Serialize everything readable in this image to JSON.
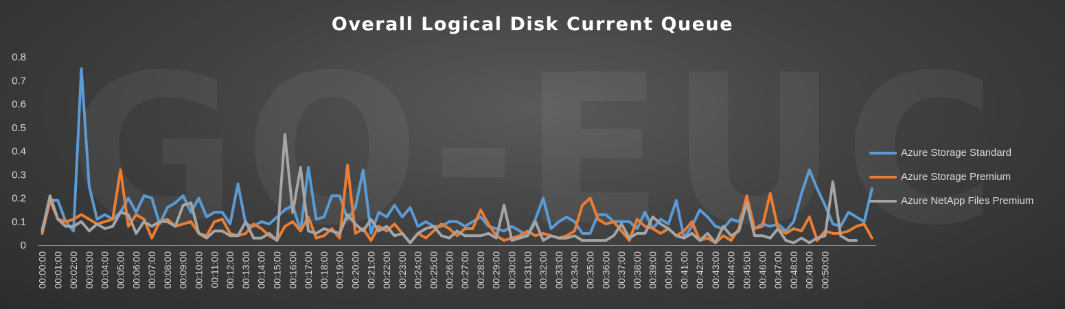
{
  "watermark": "GO-EUC",
  "chart_data": {
    "type": "line",
    "title": "Overall Logical Disk Current Queue",
    "xlabel": "",
    "ylabel": "",
    "ylim": [
      0,
      0.8
    ],
    "yticks": [
      "0",
      "0.1",
      "0.2",
      "0.3",
      "0.4",
      "0.5",
      "0.6",
      "0.7",
      "0.8"
    ],
    "x_tick_labels": [
      "00:00:00",
      "00:01:00",
      "00:02:00",
      "00:03:00",
      "00:04:00",
      "00:05:00",
      "00:06:00",
      "00:07:00",
      "00:08:00",
      "00:09:00",
      "00:10:00",
      "00:11:00",
      "00:12:00",
      "00:13:00",
      "00:14:00",
      "00:15:00",
      "00:16:00",
      "00:17:00",
      "00:18:00",
      "00:19:00",
      "00:20:00",
      "00:21:00",
      "00:22:00",
      "00:23:00",
      "00:24:00",
      "00:25:00",
      "00:26:00",
      "00:27:00",
      "00:28:00",
      "00:29:00",
      "00:30:00",
      "00:31:00",
      "00:32:00",
      "00:33:00",
      "00:34:00",
      "00:35:00",
      "00:36:00",
      "00:37:00",
      "00:38:00",
      "00:39:00",
      "00:40:00",
      "00:41:00",
      "00:42:00",
      "00:43:00",
      "00:44:00",
      "00:45:00",
      "00:46:00",
      "00:47:00",
      "00:48:00",
      "00:49:00",
      "00:50:00"
    ],
    "points_per_minute": 2,
    "grid": false,
    "legend_position": "right",
    "series": [
      {
        "name": "Azure Storage Standard",
        "color": "#5b9bd5",
        "values": [
          0.07,
          0.19,
          0.19,
          0.1,
          0.06,
          0.75,
          0.25,
          0.11,
          0.13,
          0.11,
          0.14,
          0.2,
          0.14,
          0.21,
          0.2,
          0.09,
          0.16,
          0.18,
          0.21,
          0.14,
          0.2,
          0.12,
          0.14,
          0.14,
          0.09,
          0.26,
          0.09,
          0.08,
          0.1,
          0.09,
          0.12,
          0.15,
          0.17,
          0.06,
          0.33,
          0.11,
          0.12,
          0.21,
          0.21,
          0.11,
          0.16,
          0.32,
          0.05,
          0.14,
          0.12,
          0.17,
          0.12,
          0.16,
          0.08,
          0.1,
          0.08,
          0.08,
          0.1,
          0.1,
          0.08,
          0.1,
          0.12,
          0.08,
          0.07,
          0.06,
          0.08,
          0.06,
          0.04,
          0.11,
          0.2,
          0.07,
          0.1,
          0.12,
          0.1,
          0.05,
          0.05,
          0.13,
          0.13,
          0.1,
          0.1,
          0.1,
          0.07,
          0.14,
          0.07,
          0.11,
          0.09,
          0.19,
          0.03,
          0.08,
          0.15,
          0.12,
          0.08,
          0.07,
          0.11,
          0.1,
          0.18,
          0.07,
          0.09,
          0.08,
          0.09,
          0.06,
          0.1,
          0.22,
          0.32,
          0.24,
          0.17,
          0.09,
          0.08,
          0.14,
          0.12,
          0.1,
          0.24
        ]
      },
      {
        "name": "Azure Storage Premium",
        "color": "#ed7d31",
        "values": [
          0.05,
          0.19,
          0.11,
          0.1,
          0.11,
          0.13,
          0.11,
          0.09,
          0.1,
          0.11,
          0.32,
          0.08,
          0.13,
          0.11,
          0.03,
          0.1,
          0.11,
          0.08,
          0.09,
          0.1,
          0.05,
          0.04,
          0.1,
          0.11,
          0.05,
          0.04,
          0.05,
          0.09,
          0.07,
          0.04,
          0.02,
          0.08,
          0.1,
          0.06,
          0.12,
          0.03,
          0.04,
          0.07,
          0.03,
          0.34,
          0.05,
          0.07,
          0.02,
          0.08,
          0.06,
          0.09,
          0.05,
          0.01,
          0.05,
          0.03,
          0.06,
          0.09,
          0.07,
          0.04,
          0.07,
          0.07,
          0.15,
          0.09,
          0.04,
          0.02,
          0.03,
          0.04,
          0.06,
          0.04,
          0.05,
          0.04,
          0.03,
          0.04,
          0.06,
          0.17,
          0.2,
          0.11,
          0.09,
          0.1,
          0.06,
          0.02,
          0.11,
          0.08,
          0.07,
          0.05,
          0.07,
          0.04,
          0.06,
          0.1,
          0.02,
          0.03,
          0.01,
          0.04,
          0.02,
          0.07,
          0.21,
          0.07,
          0.08,
          0.22,
          0.07,
          0.05,
          0.07,
          0.06,
          0.12,
          0.02,
          0.06,
          0.05,
          0.05,
          0.06,
          0.08,
          0.09,
          0.03
        ]
      },
      {
        "name": "Azure NetApp Files Premium",
        "color": "#a5a5a5",
        "values": [
          0.06,
          0.21,
          0.11,
          0.08,
          0.08,
          0.1,
          0.06,
          0.09,
          0.07,
          0.08,
          0.14,
          0.13,
          0.05,
          0.1,
          0.08,
          0.1,
          0.1,
          0.08,
          0.17,
          0.18,
          0.05,
          0.03,
          0.06,
          0.06,
          0.04,
          0.04,
          0.1,
          0.03,
          0.03,
          0.05,
          0.02,
          0.47,
          0.14,
          0.33,
          0.06,
          0.05,
          0.07,
          0.06,
          0.05,
          0.13,
          0.09,
          0.06,
          0.11,
          0.06,
          0.08,
          0.04,
          0.05,
          0.01,
          0.05,
          0.07,
          0.08,
          0.04,
          0.03,
          0.06,
          0.04,
          0.04,
          0.04,
          0.05,
          0.03,
          0.17,
          0.02,
          0.03,
          0.04,
          0.1,
          0.02,
          0.04,
          0.03,
          0.03,
          0.04,
          0.02,
          0.02,
          0.02,
          0.02,
          0.04,
          0.09,
          0.03,
          0.05,
          0.05,
          0.12,
          0.09,
          0.07,
          0.04,
          0.03,
          0.05,
          0.02,
          0.05,
          0.01,
          0.08,
          0.04,
          0.06,
          0.18,
          0.04,
          0.04,
          0.03,
          0.07,
          0.02,
          0.01,
          0.03,
          0.01,
          0.03,
          0.04,
          0.27,
          0.04,
          0.02,
          0.02
        ]
      }
    ]
  }
}
